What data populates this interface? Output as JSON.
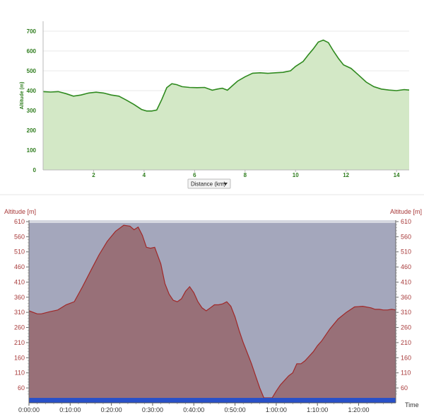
{
  "chart_data": [
    {
      "type": "area",
      "xlabel_control": "Distance (km)",
      "ylabel": "Altitude (m)",
      "xlim": [
        0,
        14.5
      ],
      "ylim": [
        0,
        750
      ],
      "x_ticks": [
        "2",
        "4",
        "6",
        "8",
        "10",
        "12",
        "14"
      ],
      "y_ticks": [
        "0",
        "100",
        "200",
        "300",
        "400",
        "500",
        "600",
        "700"
      ],
      "grid": true,
      "colors": {
        "line": "#2f8a1f",
        "fill": "#d3e8c6",
        "text": "#2f7d1e"
      },
      "x": [
        0,
        0.3,
        0.6,
        0.9,
        1.2,
        1.5,
        1.8,
        2.1,
        2.4,
        2.7,
        3.0,
        3.3,
        3.6,
        3.9,
        4.1,
        4.3,
        4.5,
        4.7,
        4.9,
        5.1,
        5.3,
        5.5,
        5.8,
        6.1,
        6.4,
        6.7,
        6.9,
        7.1,
        7.3,
        7.5,
        7.7,
        8.0,
        8.3,
        8.6,
        8.9,
        9.2,
        9.5,
        9.8,
        10.0,
        10.3,
        10.5,
        10.7,
        10.9,
        11.1,
        11.3,
        11.5,
        11.7,
        11.9,
        12.2,
        12.5,
        12.8,
        13.1,
        13.4,
        13.7,
        14.0,
        14.3,
        14.5
      ],
      "values": [
        395,
        393,
        395,
        385,
        372,
        378,
        388,
        392,
        388,
        378,
        372,
        352,
        330,
        305,
        297,
        297,
        302,
        355,
        415,
        435,
        430,
        420,
        416,
        415,
        416,
        402,
        408,
        412,
        402,
        425,
        448,
        470,
        488,
        490,
        487,
        490,
        492,
        500,
        522,
        547,
        580,
        610,
        645,
        655,
        642,
        600,
        562,
        530,
        512,
        478,
        443,
        420,
        408,
        403,
        400,
        405,
        403
      ]
    },
    {
      "type": "area",
      "ylabel_left": "Altitude [m]",
      "ylabel_right": "Altitude [m]",
      "xlabel": "Time",
      "xlim_min": [
        0,
        89
      ],
      "ylim": [
        30,
        610
      ],
      "y_ticks": [
        "610",
        "560",
        "510",
        "460",
        "410",
        "360",
        "310",
        "260",
        "210",
        "160",
        "110",
        "60"
      ],
      "x_ticks": [
        "0:00:00",
        "0:10:00",
        "0:20:00",
        "0:30:00",
        "0:40:00",
        "0:50:00",
        "1:00:00",
        "1:10:00",
        "1:20:00"
      ],
      "colors": {
        "background": "#a4a7bc",
        "fill": "#987078",
        "line": "#a02828",
        "bottom_bar": "#2850c8",
        "text": "#a83a3a"
      },
      "x_min": [
        0,
        2,
        3,
        5,
        7,
        9,
        11,
        13,
        15,
        17,
        19,
        21,
        23,
        24.5,
        25.5,
        26.5,
        27.5,
        28.5,
        29.5,
        30.5,
        32,
        33,
        34,
        35,
        36,
        37,
        38,
        39,
        40,
        41,
        42,
        43,
        44,
        45,
        46,
        47,
        48,
        49,
        50,
        51,
        52,
        53,
        54,
        55,
        56,
        57,
        58,
        59,
        60,
        61,
        62,
        63,
        64,
        65,
        66,
        67,
        68,
        69,
        70,
        71,
        72,
        73,
        75,
        77,
        79,
        81,
        83,
        84,
        85,
        86,
        87,
        88,
        89
      ],
      "values": [
        315,
        305,
        305,
        312,
        318,
        335,
        345,
        395,
        448,
        500,
        545,
        578,
        598,
        595,
        583,
        592,
        565,
        525,
        522,
        525,
        470,
        405,
        370,
        350,
        345,
        355,
        380,
        395,
        375,
        345,
        325,
        315,
        325,
        335,
        335,
        338,
        345,
        330,
        295,
        250,
        210,
        175,
        140,
        100,
        60,
        20,
        0,
        20,
        50,
        70,
        85,
        100,
        110,
        140,
        140,
        150,
        165,
        180,
        200,
        215,
        235,
        255,
        288,
        310,
        328,
        330,
        325,
        320,
        320,
        318,
        318,
        320,
        318
      ]
    }
  ]
}
